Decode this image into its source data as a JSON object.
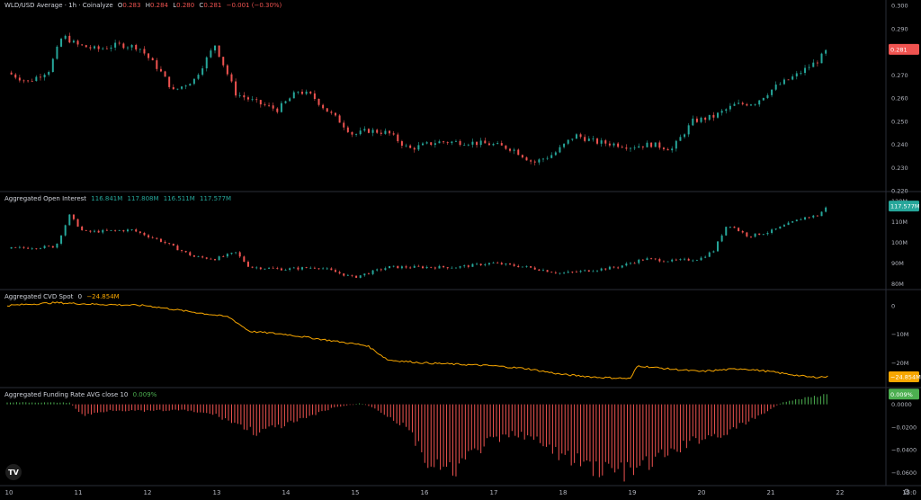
{
  "panes": {
    "price": {
      "title": "WLD/USD Average · 1h · Coinalyze",
      "o_label": "O",
      "o": "0.283",
      "h_label": "H",
      "h": "0.284",
      "l_label": "L",
      "l": "0.280",
      "c_label": "C",
      "c": "0.281",
      "change": "−0.001 (−0.30%)",
      "last_value": "0.281",
      "ticks": [
        "0.300",
        "0.290",
        "0.280",
        "0.270",
        "0.260",
        "0.250",
        "0.240",
        "0.230",
        "0.220"
      ]
    },
    "oi": {
      "title": "Aggregated Open Interest",
      "o": "116.841M",
      "h": "117.808M",
      "l": "116.511M",
      "c": "117.577M",
      "last_value": "117.577M",
      "ticks": [
        "120M",
        "110M",
        "100M",
        "90M",
        "80M"
      ]
    },
    "cvd": {
      "title": "Aggregated CVD Spot",
      "param": "0",
      "value": "−24.854M",
      "last_value": "−24.854M",
      "ticks": [
        "0",
        "−10M",
        "−20M"
      ]
    },
    "funding": {
      "title": "Aggregated Funding Rate AVG close 10",
      "value": "0.009%",
      "last_value": "0.009%",
      "ticks": [
        "0.0000",
        "−0.0200",
        "−0.0400",
        "−0.0600"
      ]
    }
  },
  "x_axis": {
    "labels": [
      "10",
      "11",
      "12",
      "13",
      "14",
      "15",
      "16",
      "17",
      "18",
      "19",
      "20",
      "21",
      "22",
      "15:0"
    ]
  },
  "colors": {
    "up": "#26a69a",
    "down": "#ef5350",
    "cvd": "#f7a600",
    "funding_up": "#4caf50",
    "funding_down": "#ef5350",
    "background": "#000000"
  },
  "logo_text": "TV",
  "chart_data": [
    {
      "type": "candlestick",
      "title": "WLD/USD Average · 1h · Coinalyze",
      "x_start": "10",
      "x_end": "22",
      "ylim": [
        0.22,
        0.3
      ],
      "close_keypoints": [
        [
          0,
          0.271
        ],
        [
          0.3,
          0.267
        ],
        [
          0.6,
          0.272
        ],
        [
          0.8,
          0.287
        ],
        [
          1.0,
          0.283
        ],
        [
          1.3,
          0.281
        ],
        [
          1.6,
          0.283
        ],
        [
          1.9,
          0.282
        ],
        [
          2.2,
          0.272
        ],
        [
          2.4,
          0.263
        ],
        [
          2.7,
          0.268
        ],
        [
          3.0,
          0.283
        ],
        [
          3.3,
          0.262
        ],
        [
          3.6,
          0.258
        ],
        [
          3.9,
          0.255
        ],
        [
          4.2,
          0.263
        ],
        [
          4.4,
          0.261
        ],
        [
          4.6,
          0.255
        ],
        [
          4.8,
          0.25
        ],
        [
          5.0,
          0.244
        ],
        [
          5.2,
          0.246
        ],
        [
          5.5,
          0.245
        ],
        [
          5.8,
          0.238
        ],
        [
          6.2,
          0.241
        ],
        [
          6.6,
          0.241
        ],
        [
          7.0,
          0.24
        ],
        [
          7.3,
          0.238
        ],
        [
          7.6,
          0.232
        ],
        [
          7.9,
          0.236
        ],
        [
          8.2,
          0.244
        ],
        [
          8.5,
          0.241
        ],
        [
          8.8,
          0.24
        ],
        [
          9.0,
          0.239
        ],
        [
          9.3,
          0.24
        ],
        [
          9.6,
          0.238
        ],
        [
          9.9,
          0.25
        ],
        [
          10.2,
          0.252
        ],
        [
          10.5,
          0.257
        ],
        [
          10.8,
          0.258
        ],
        [
          11.1,
          0.265
        ],
        [
          11.4,
          0.27
        ],
        [
          11.7,
          0.276
        ],
        [
          11.85,
          0.281
        ]
      ]
    },
    {
      "type": "candlestick",
      "title": "Aggregated Open Interest",
      "ylim": [
        78,
        122
      ],
      "close_keypoints": [
        [
          0,
          97
        ],
        [
          0.7,
          98
        ],
        [
          0.9,
          113
        ],
        [
          1.1,
          105
        ],
        [
          1.8,
          106
        ],
        [
          2.2,
          101
        ],
        [
          2.7,
          93
        ],
        [
          3.0,
          92
        ],
        [
          3.3,
          95
        ],
        [
          3.5,
          88
        ],
        [
          4.0,
          87
        ],
        [
          4.5,
          88
        ],
        [
          5.0,
          83
        ],
        [
          5.5,
          88
        ],
        [
          6.0,
          88
        ],
        [
          6.5,
          88
        ],
        [
          7.0,
          90
        ],
        [
          7.5,
          88
        ],
        [
          8.0,
          85
        ],
        [
          8.3,
          86
        ],
        [
          8.8,
          88
        ],
        [
          9.2,
          92
        ],
        [
          9.6,
          91
        ],
        [
          10.0,
          92
        ],
        [
          10.2,
          96
        ],
        [
          10.4,
          109
        ],
        [
          10.7,
          103
        ],
        [
          11.0,
          105
        ],
        [
          11.5,
          112
        ],
        [
          11.7,
          113
        ],
        [
          11.85,
          117.577
        ]
      ]
    },
    {
      "type": "line",
      "title": "Aggregated CVD Spot",
      "ylim": [
        -28,
        4
      ],
      "points": [
        [
          0,
          0
        ],
        [
          0.7,
          1
        ],
        [
          1.2,
          0.5
        ],
        [
          2.0,
          0
        ],
        [
          2.6,
          -2
        ],
        [
          3.2,
          -4
        ],
        [
          3.5,
          -9
        ],
        [
          4.0,
          -10
        ],
        [
          4.6,
          -12
        ],
        [
          5.2,
          -14
        ],
        [
          5.5,
          -19
        ],
        [
          6.0,
          -20
        ],
        [
          6.5,
          -20.5
        ],
        [
          7.0,
          -21
        ],
        [
          7.5,
          -22
        ],
        [
          8.0,
          -24
        ],
        [
          8.5,
          -25
        ],
        [
          9.0,
          -25.5
        ],
        [
          9.1,
          -21
        ],
        [
          9.5,
          -22
        ],
        [
          10.0,
          -23
        ],
        [
          10.6,
          -22
        ],
        [
          11.0,
          -23
        ],
        [
          11.3,
          -24
        ],
        [
          11.6,
          -25
        ],
        [
          11.85,
          -24.854
        ]
      ]
    },
    {
      "type": "histogram",
      "title": "Aggregated Funding Rate AVG close 10",
      "ylim": [
        -0.07,
        0.01
      ],
      "envelope_keypoints": [
        [
          0,
          0.0018
        ],
        [
          0.9,
          0.0015
        ],
        [
          1.1,
          -0.01
        ],
        [
          1.5,
          -0.005
        ],
        [
          2.0,
          -0.006
        ],
        [
          2.5,
          -0.005
        ],
        [
          3.0,
          -0.009
        ],
        [
          3.6,
          -0.025
        ],
        [
          4.2,
          -0.015
        ],
        [
          4.7,
          -0.003
        ],
        [
          5.1,
          0.001
        ],
        [
          5.3,
          -0.003
        ],
        [
          5.8,
          -0.022
        ],
        [
          6.1,
          -0.055
        ],
        [
          6.4,
          -0.06
        ],
        [
          6.9,
          -0.035
        ],
        [
          7.4,
          -0.025
        ],
        [
          8.0,
          -0.045
        ],
        [
          8.5,
          -0.056
        ],
        [
          9.0,
          -0.06
        ],
        [
          9.5,
          -0.045
        ],
        [
          10.0,
          -0.03
        ],
        [
          10.4,
          -0.025
        ],
        [
          10.8,
          -0.012
        ],
        [
          11.2,
          0.002
        ],
        [
          11.85,
          0.009
        ]
      ]
    }
  ]
}
